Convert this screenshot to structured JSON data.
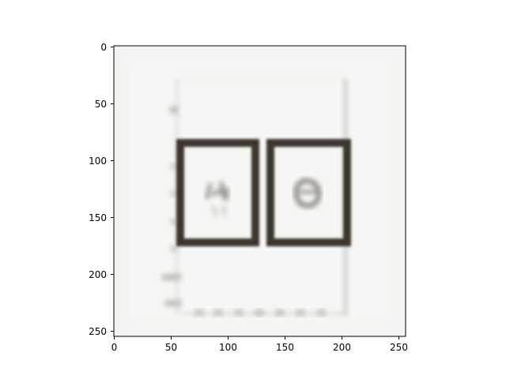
{
  "figure": {
    "x_ticks": [
      "0",
      "50",
      "100",
      "150",
      "200",
      "250"
    ],
    "y_ticks": [
      "0",
      "50",
      "100",
      "150",
      "200",
      "250"
    ]
  }
}
